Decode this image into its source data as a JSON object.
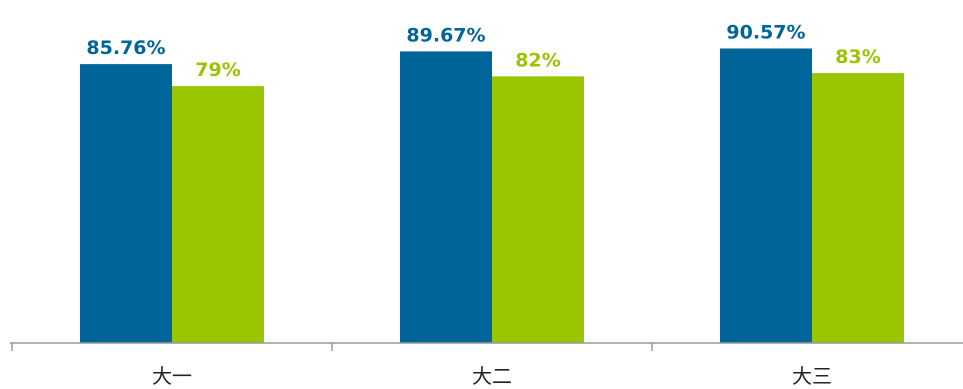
{
  "chart_data": {
    "type": "bar",
    "categories": [
      "大一",
      "大二",
      "大三"
    ],
    "series": [
      {
        "values": [
          85.76,
          89.67,
          90.57
        ],
        "labels": [
          "85.76%",
          "89.67%",
          "90.57%"
        ],
        "color": "#006699"
      },
      {
        "values": [
          79,
          82,
          83
        ],
        "labels": [
          "79%",
          "82%",
          "83%"
        ],
        "color": "#99c400"
      }
    ],
    "title": "",
    "xlabel": "",
    "ylabel": "",
    "ylim": [
      0,
      100
    ],
    "grid": false,
    "legend": "none",
    "axis_color": "#999999"
  }
}
